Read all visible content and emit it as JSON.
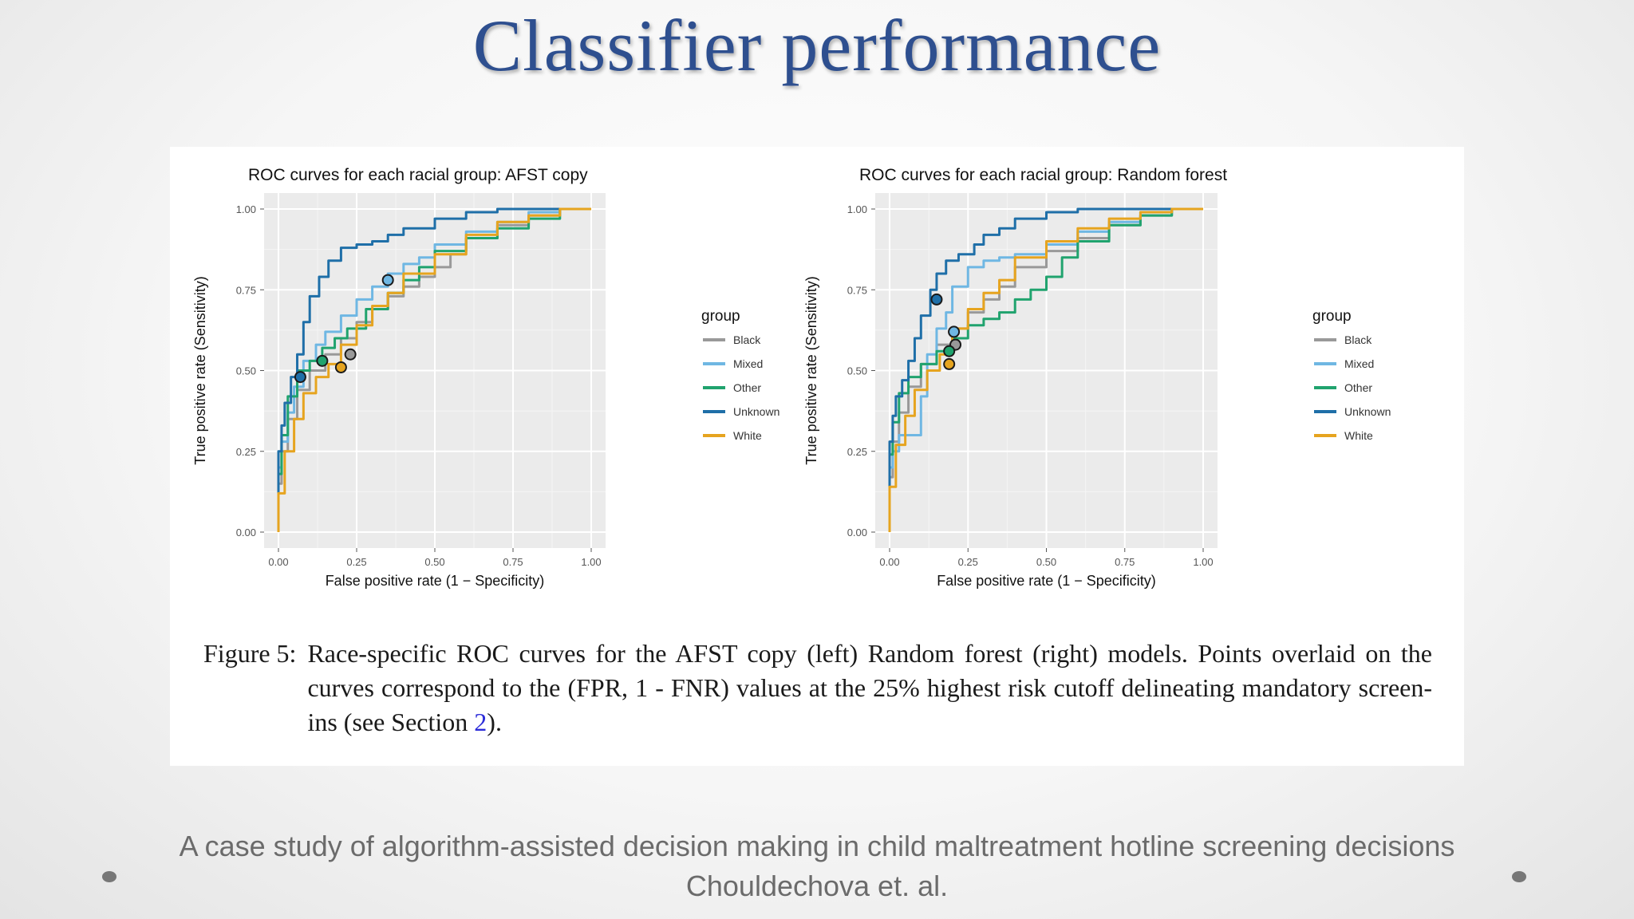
{
  "slide": {
    "title": "Classifier performance",
    "footer_line1": "A case study of algorithm-assisted decision making in child maltreatment hotline screening decisions",
    "footer_line2": "Chouldechova et. al."
  },
  "figure": {
    "caption_label": "Figure 5:",
    "caption_text": "Race-specific ROC curves for the AFST copy (left) Random forest (right) models. Points overlaid on the curves correspond to the (FPR, 1 - FNR) values at the 25% highest risk cutoff delineating mandatory screen-ins (see Section ",
    "caption_ref": "2",
    "caption_end": ")."
  },
  "colors": {
    "Black": "#999999",
    "Mixed": "#6fb7e3",
    "Other": "#20a36e",
    "Unknown": "#1f6fa8",
    "White": "#e6a41f",
    "panel_bg": "#ebebeb",
    "grid": "#ffffff"
  },
  "chart_data": [
    {
      "type": "line",
      "title": "ROC curves for each racial group: AFST copy",
      "xlabel": "False positive rate (1 − Specificity)",
      "ylabel": "True positive rate (Sensitivity)",
      "xlim": [
        0,
        1
      ],
      "ylim": [
        0,
        1
      ],
      "xticks": [
        "0.00",
        "0.25",
        "0.50",
        "0.75",
        "1.00"
      ],
      "yticks": [
        "0.00",
        "0.25",
        "0.50",
        "0.75",
        "1.00"
      ],
      "grid": true,
      "legend_title": "group",
      "legend_position": "right",
      "series": [
        {
          "name": "Black",
          "x": [
            0,
            0.01,
            0.03,
            0.06,
            0.1,
            0.15,
            0.2,
            0.25,
            0.3,
            0.35,
            0.4,
            0.45,
            0.5,
            0.55,
            0.6,
            0.7,
            0.8,
            0.9,
            1.0
          ],
          "y": [
            0,
            0.15,
            0.25,
            0.35,
            0.44,
            0.5,
            0.55,
            0.6,
            0.65,
            0.69,
            0.73,
            0.76,
            0.79,
            0.82,
            0.86,
            0.91,
            0.95,
            0.98,
            1.0
          ]
        },
        {
          "name": "Mixed",
          "x": [
            0,
            0.01,
            0.03,
            0.05,
            0.08,
            0.12,
            0.15,
            0.2,
            0.25,
            0.3,
            0.35,
            0.4,
            0.45,
            0.5,
            0.6,
            0.7,
            0.8,
            0.9,
            1.0
          ],
          "y": [
            0,
            0.2,
            0.28,
            0.37,
            0.45,
            0.53,
            0.58,
            0.62,
            0.67,
            0.72,
            0.76,
            0.8,
            0.83,
            0.85,
            0.89,
            0.93,
            0.96,
            0.99,
            1.0
          ]
        },
        {
          "name": "Other",
          "x": [
            0,
            0.01,
            0.03,
            0.06,
            0.1,
            0.14,
            0.18,
            0.22,
            0.28,
            0.35,
            0.4,
            0.45,
            0.5,
            0.6,
            0.7,
            0.8,
            0.9,
            1.0
          ],
          "y": [
            0,
            0.18,
            0.3,
            0.42,
            0.5,
            0.53,
            0.57,
            0.6,
            0.63,
            0.69,
            0.74,
            0.78,
            0.82,
            0.87,
            0.91,
            0.94,
            0.97,
            1.0
          ]
        },
        {
          "name": "Unknown",
          "x": [
            0,
            0.01,
            0.02,
            0.04,
            0.06,
            0.08,
            0.1,
            0.13,
            0.16,
            0.2,
            0.25,
            0.3,
            0.35,
            0.4,
            0.5,
            0.6,
            0.7,
            0.8,
            0.9,
            1.0
          ],
          "y": [
            0,
            0.25,
            0.33,
            0.4,
            0.48,
            0.55,
            0.65,
            0.73,
            0.79,
            0.84,
            0.88,
            0.89,
            0.9,
            0.92,
            0.94,
            0.97,
            0.99,
            1.0,
            1.0,
            1.0
          ]
        },
        {
          "name": "White",
          "x": [
            0,
            0.02,
            0.05,
            0.08,
            0.12,
            0.16,
            0.2,
            0.25,
            0.3,
            0.35,
            0.4,
            0.5,
            0.6,
            0.7,
            0.8,
            0.9,
            1.0
          ],
          "y": [
            0,
            0.12,
            0.25,
            0.35,
            0.43,
            0.48,
            0.52,
            0.58,
            0.64,
            0.7,
            0.74,
            0.8,
            0.86,
            0.92,
            0.96,
            0.98,
            1.0
          ]
        }
      ],
      "points": [
        {
          "group": "Unknown",
          "x": 0.07,
          "y": 0.48
        },
        {
          "group": "Other",
          "x": 0.14,
          "y": 0.53
        },
        {
          "group": "White",
          "x": 0.2,
          "y": 0.51
        },
        {
          "group": "Black",
          "x": 0.23,
          "y": 0.55
        },
        {
          "group": "Mixed",
          "x": 0.35,
          "y": 0.78
        }
      ]
    },
    {
      "type": "line",
      "title": "ROC curves for each racial group: Random forest",
      "xlabel": "False positive rate (1 − Specificity)",
      "ylabel": "True positive rate (Sensitivity)",
      "xlim": [
        0,
        1
      ],
      "ylim": [
        0,
        1
      ],
      "xticks": [
        "0.00",
        "0.25",
        "0.50",
        "0.75",
        "1.00"
      ],
      "yticks": [
        "0.00",
        "0.25",
        "0.50",
        "0.75",
        "1.00"
      ],
      "grid": true,
      "legend_title": "group",
      "legend_position": "right",
      "series": [
        {
          "name": "Black",
          "x": [
            0,
            0.01,
            0.03,
            0.06,
            0.1,
            0.15,
            0.2,
            0.25,
            0.3,
            0.35,
            0.4,
            0.5,
            0.6,
            0.7,
            0.8,
            0.9,
            1.0
          ],
          "y": [
            0,
            0.17,
            0.28,
            0.37,
            0.45,
            0.52,
            0.58,
            0.63,
            0.68,
            0.72,
            0.76,
            0.82,
            0.87,
            0.91,
            0.95,
            0.98,
            1.0
          ]
        },
        {
          "name": "Mixed",
          "x": [
            0,
            0.01,
            0.03,
            0.06,
            0.1,
            0.12,
            0.15,
            0.18,
            0.2,
            0.25,
            0.3,
            0.35,
            0.4,
            0.5,
            0.6,
            0.7,
            0.8,
            0.9,
            1.0
          ],
          "y": [
            0,
            0.2,
            0.25,
            0.3,
            0.3,
            0.42,
            0.55,
            0.63,
            0.68,
            0.76,
            0.82,
            0.84,
            0.85,
            0.86,
            0.89,
            0.93,
            0.96,
            0.99,
            1.0
          ]
        },
        {
          "name": "Other",
          "x": [
            0,
            0.01,
            0.03,
            0.06,
            0.1,
            0.15,
            0.2,
            0.25,
            0.3,
            0.35,
            0.4,
            0.45,
            0.5,
            0.55,
            0.6,
            0.7,
            0.8,
            0.9,
            1.0
          ],
          "y": [
            0,
            0.24,
            0.34,
            0.43,
            0.48,
            0.52,
            0.56,
            0.6,
            0.64,
            0.66,
            0.68,
            0.72,
            0.75,
            0.79,
            0.85,
            0.9,
            0.95,
            0.98,
            1.0
          ]
        },
        {
          "name": "Unknown",
          "x": [
            0,
            0.01,
            0.02,
            0.04,
            0.06,
            0.08,
            0.1,
            0.13,
            0.15,
            0.18,
            0.22,
            0.27,
            0.3,
            0.35,
            0.4,
            0.5,
            0.6,
            0.7,
            0.8,
            0.9,
            1.0
          ],
          "y": [
            0,
            0.28,
            0.36,
            0.42,
            0.47,
            0.53,
            0.6,
            0.67,
            0.75,
            0.8,
            0.84,
            0.86,
            0.89,
            0.92,
            0.94,
            0.97,
            0.99,
            1.0,
            1.0,
            1.0,
            1.0
          ]
        },
        {
          "name": "White",
          "x": [
            0,
            0.02,
            0.05,
            0.08,
            0.12,
            0.16,
            0.2,
            0.25,
            0.3,
            0.35,
            0.4,
            0.5,
            0.6,
            0.7,
            0.8,
            0.9,
            1.0
          ],
          "y": [
            0,
            0.14,
            0.27,
            0.36,
            0.44,
            0.5,
            0.55,
            0.63,
            0.69,
            0.74,
            0.78,
            0.85,
            0.9,
            0.94,
            0.97,
            0.99,
            1.0
          ]
        }
      ],
      "points": [
        {
          "group": "Unknown",
          "x": 0.15,
          "y": 0.72
        },
        {
          "group": "Mixed",
          "x": 0.205,
          "y": 0.62
        },
        {
          "group": "Black",
          "x": 0.21,
          "y": 0.58
        },
        {
          "group": "Other",
          "x": 0.19,
          "y": 0.56
        },
        {
          "group": "White",
          "x": 0.19,
          "y": 0.52
        }
      ]
    }
  ]
}
